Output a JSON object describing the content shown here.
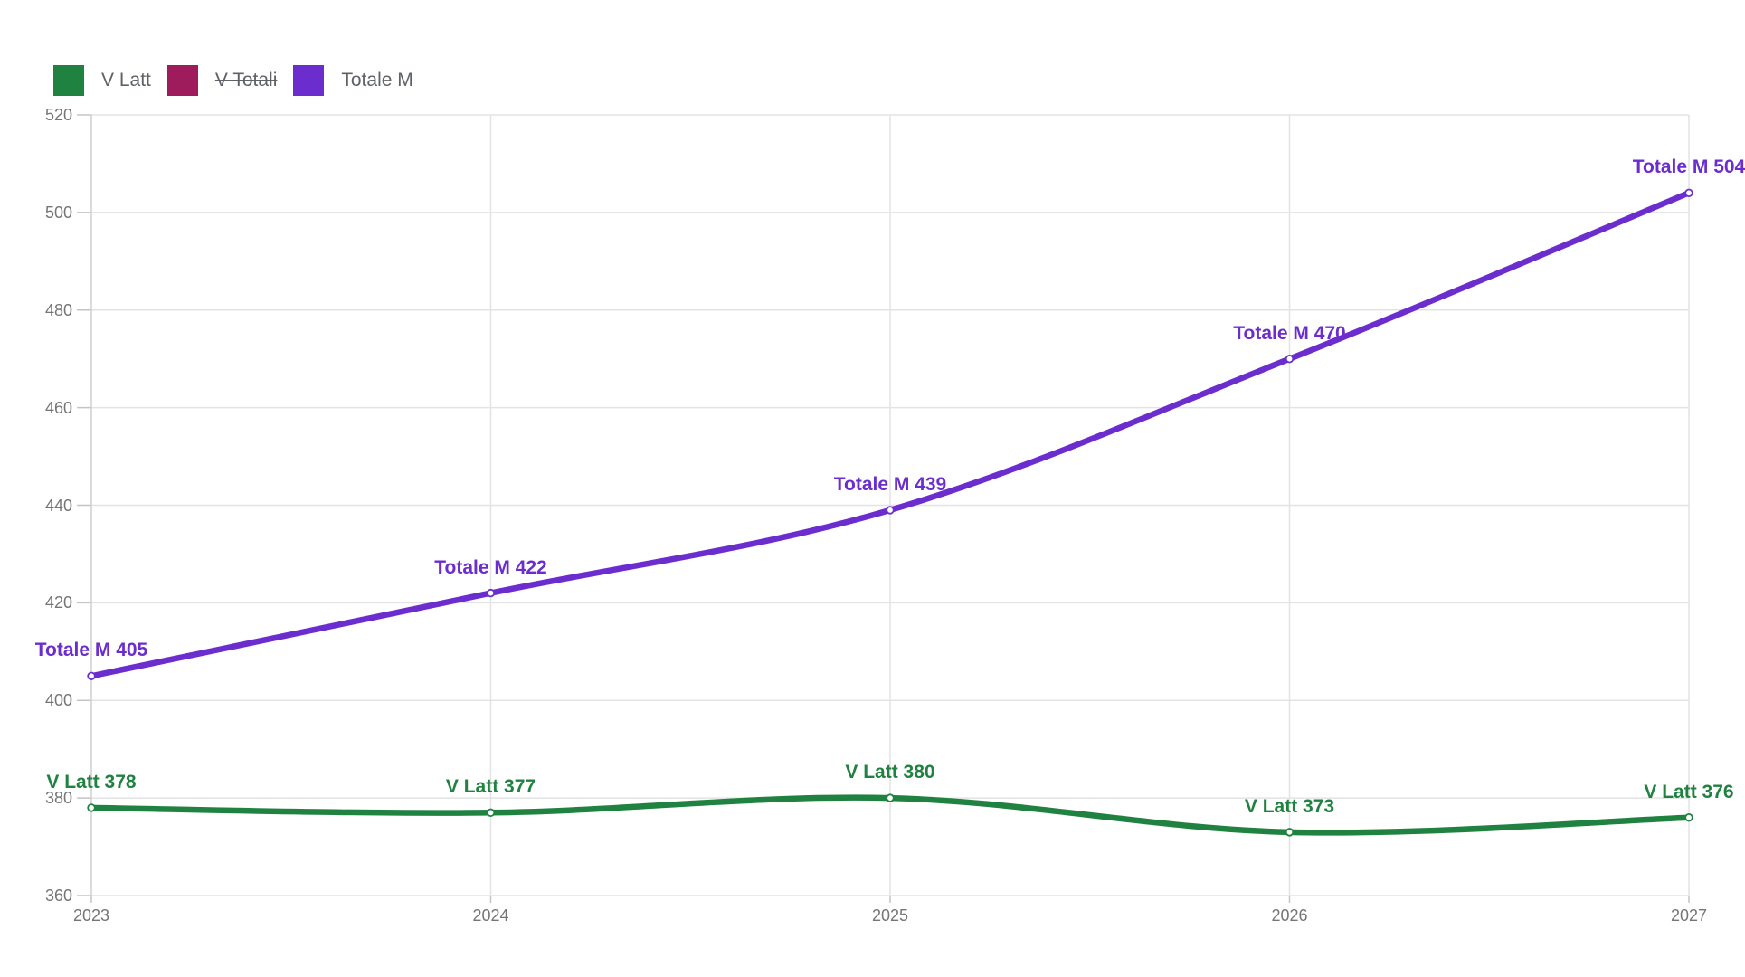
{
  "legend": {
    "items": [
      {
        "label": "V Latt",
        "color": "#1f8240",
        "struck": false
      },
      {
        "label": "V Totali",
        "color": "#9e1c5c",
        "struck": true
      },
      {
        "label": "Totale M",
        "color": "#6c2dce",
        "struck": false
      }
    ]
  },
  "axes": {
    "x_tick_labels": [
      "2023",
      "2024",
      "2025",
      "2026",
      "2027"
    ],
    "y_tick_labels": [
      "520",
      "500",
      "480",
      "460",
      "440",
      "420",
      "400",
      "380",
      "360"
    ]
  },
  "chart_data": {
    "type": "line",
    "title": "",
    "xlabel": "",
    "ylabel": "",
    "x": [
      "2023",
      "2024",
      "2025",
      "2026",
      "2027"
    ],
    "ylim": [
      360,
      520
    ],
    "yticks": [
      360,
      380,
      400,
      420,
      440,
      460,
      480,
      500,
      520
    ],
    "grid": true,
    "smooth": true,
    "legend_position": "top-left",
    "series": [
      {
        "name": "V Latt",
        "color": "#1f8240",
        "visible": true,
        "values": [
          378,
          377,
          380,
          373,
          376
        ],
        "point_labels": [
          "V Latt 378",
          "V Latt 377",
          "V Latt 380",
          "V Latt 373",
          "V Latt 376"
        ]
      },
      {
        "name": "V Totali",
        "color": "#9e1c5c",
        "visible": false,
        "values": [],
        "point_labels": []
      },
      {
        "name": "Totale M",
        "color": "#6c2dce",
        "visible": true,
        "values": [
          405,
          422,
          439,
          470,
          504
        ],
        "point_labels": [
          "Totale M 405",
          "Totale M 422",
          "Totale M 439",
          "Totale M 470",
          "Totale M 504"
        ]
      }
    ]
  },
  "colors": {
    "background": "#ffffff",
    "grid": "#e3e3e3",
    "axis_line": "#cfcfcf",
    "tick": "#c4c4c4",
    "axis_text": "#757575",
    "legend_text": "#5f6368"
  }
}
